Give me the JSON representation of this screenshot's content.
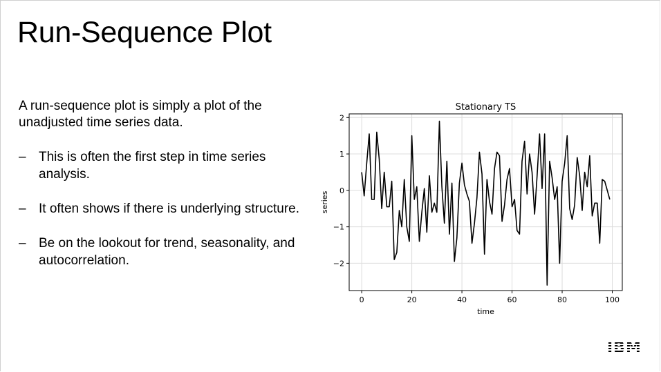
{
  "slide": {
    "title": "Run-Sequence Plot",
    "intro": "A run-sequence plot is simply a plot of the unadjusted time series data.",
    "bullet_marker": "–",
    "bullets": [
      "This is often the first step in time series analysis.",
      "It often shows if there is underlying structure.",
      "Be on the lookout for trend, seasonality, and autocorrelation."
    ],
    "logo_text": "IBM"
  },
  "chart_data": {
    "type": "line",
    "title": "Stationary TS",
    "xlabel": "time",
    "ylabel": "series",
    "xlim": [
      -5,
      104
    ],
    "ylim": [
      -2.75,
      2.1
    ],
    "x_ticks": [
      0,
      20,
      40,
      60,
      80,
      100
    ],
    "y_ticks": [
      -2,
      -1,
      0,
      1,
      2
    ],
    "x_tick_labels": [
      "0",
      "20",
      "40",
      "60",
      "80",
      "100"
    ],
    "y_tick_labels": [
      "−2",
      "−1",
      "0",
      "1",
      "2"
    ],
    "grid": true,
    "line_color": "#000000",
    "series": [
      {
        "x": [
          0,
          1,
          2,
          3,
          4,
          5,
          6,
          7,
          8,
          9,
          10,
          11,
          12,
          13,
          14,
          15,
          16,
          17,
          18,
          19,
          20,
          21,
          22,
          23,
          24,
          25,
          26,
          27,
          28,
          29,
          30,
          31,
          32,
          33,
          34,
          35,
          36,
          37,
          38,
          39,
          40,
          41,
          42,
          43,
          44,
          45,
          46,
          47,
          48,
          49,
          50,
          51,
          52,
          53,
          54,
          55,
          56,
          57,
          58,
          59,
          60,
          61,
          62,
          63,
          64,
          65,
          66,
          67,
          68,
          69,
          70,
          71,
          72,
          73,
          74,
          75,
          76,
          77,
          78,
          79,
          80,
          81,
          82,
          83,
          84,
          85,
          86,
          87,
          88,
          89,
          90,
          91,
          92,
          93,
          94,
          95,
          96,
          97,
          98,
          99
        ],
        "values": [
          0.5,
          -0.15,
          0.75,
          1.55,
          -0.25,
          -0.25,
          1.6,
          0.85,
          -0.5,
          0.5,
          -0.45,
          -0.45,
          0.25,
          -1.9,
          -1.7,
          -0.55,
          -1.0,
          0.3,
          -1.0,
          -1.4,
          1.5,
          -0.25,
          0.1,
          -1.4,
          -0.6,
          0.05,
          -1.15,
          0.4,
          -0.6,
          -0.35,
          -0.6,
          1.9,
          0.1,
          -0.9,
          0.8,
          -1.2,
          0.2,
          -1.95,
          -1.3,
          0.2,
          0.75,
          0.15,
          -0.1,
          -0.3,
          -1.45,
          -0.9,
          -0.2,
          1.05,
          0.45,
          -1.75,
          0.3,
          -0.3,
          -0.65,
          0.6,
          1.05,
          0.95,
          -0.85,
          -0.4,
          0.3,
          0.6,
          -0.45,
          -0.25,
          -1.1,
          -1.2,
          0.8,
          1.35,
          -0.1,
          1.0,
          0.5,
          -0.65,
          0.4,
          1.55,
          0.05,
          1.55,
          -2.6,
          0.8,
          0.35,
          -0.25,
          0.1,
          -2.0,
          0.25,
          0.75,
          1.5,
          -0.5,
          -0.8,
          -0.4,
          0.9,
          0.4,
          -0.55,
          0.5,
          0.1,
          0.95,
          -0.7,
          -0.35,
          -0.35,
          -1.45,
          0.3,
          0.25,
          0.0,
          -0.25
        ]
      }
    ]
  }
}
